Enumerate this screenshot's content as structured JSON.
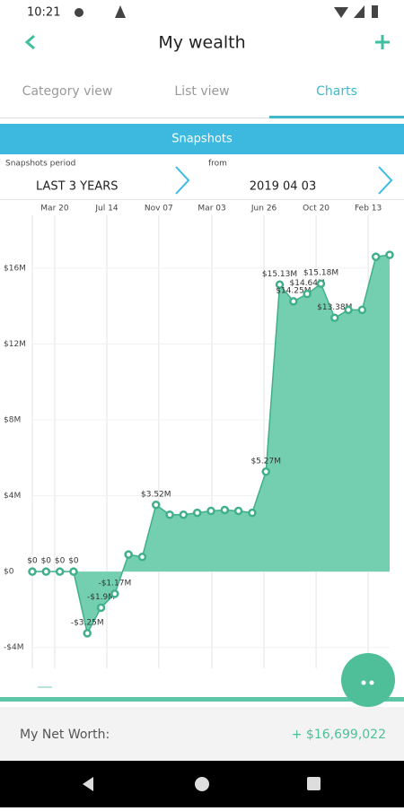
{
  "status_bar": {
    "time": "10:21"
  },
  "header": {
    "title": "My wealth"
  },
  "tabs": [
    "Category view",
    "List view",
    "Charts"
  ],
  "section": {
    "title": "Snapshots"
  },
  "period": {
    "label": "Snapshots period",
    "value": "LAST 3 YEARS"
  },
  "from": {
    "label": "from",
    "value": "2019 04 03"
  },
  "chart_data": {
    "type": "area",
    "color": "#74cfb0",
    "line_color": "#3fb08a",
    "values": [
      0,
      0,
      0,
      0,
      -3250000,
      -1900000,
      -1170000,
      900000,
      774274,
      3520000,
      3000000,
      3000000,
      3100000,
      3200000,
      3250000,
      3200000,
      3100000,
      5270000,
      15130000,
      14250000,
      14640000,
      15180000,
      13380000,
      13800000,
      13800000,
      16600000,
      16700000
    ],
    "value_labels": [
      "$0",
      "$0",
      "$0",
      "$0",
      "-$3.25M",
      "-$1.9M",
      "-$1.17M",
      null,
      null,
      "$3.52M",
      null,
      null,
      null,
      null,
      null,
      null,
      null,
      "$5.27M",
      "$15.13M",
      "$14.25M",
      "$14.64M",
      "$15.18M",
      "$13.38M",
      null,
      null,
      null,
      null
    ],
    "xlim": [
      0,
      26
    ],
    "xticks": [
      {
        "value": 1.63,
        "label": "Mar 20"
      },
      {
        "value": 5.42,
        "label": "Jul 14"
      },
      {
        "value": 9.2,
        "label": "Nov 07"
      },
      {
        "value": 13.07,
        "label": "Mar 03"
      },
      {
        "value": 16.86,
        "label": "Jun 26"
      },
      {
        "value": 20.65,
        "label": "Oct 20"
      },
      {
        "value": 24.44,
        "label": "Feb 13"
      }
    ],
    "ylim": [
      -5100000,
      18550000
    ],
    "yticks": [
      {
        "value": -4000000,
        "label": "-$4M"
      },
      {
        "value": 0,
        "label": "$0"
      },
      {
        "value": 4000000,
        "label": "$4M"
      },
      {
        "value": 8000000,
        "label": "$8M"
      },
      {
        "value": 12000000,
        "label": "$12M"
      },
      {
        "value": 16000000,
        "label": "$16M"
      }
    ],
    "grid": true
  },
  "footer": {
    "label": "My Net Worth:",
    "value": "+ $16,699,022"
  }
}
